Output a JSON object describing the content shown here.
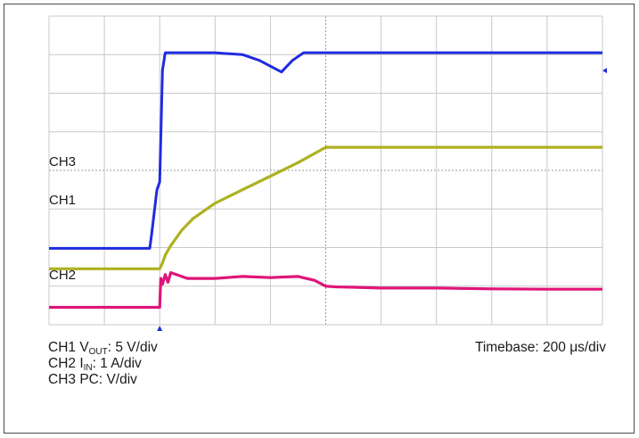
{
  "chart_data": {
    "type": "line",
    "title": "",
    "xlabel": "",
    "ylabel": "",
    "grid": true,
    "divisions": {
      "x": 10,
      "y": 8
    },
    "xlim": [
      0,
      10
    ],
    "ylim": [
      0,
      8
    ],
    "trigger_x": 2.0,
    "series": [
      {
        "name": "CH3",
        "color": "#1f2be0",
        "x": [
          0,
          1.82,
          1.85,
          1.9,
          1.95,
          2.0,
          2.05,
          2.1,
          2.5,
          3.0,
          3.5,
          3.8,
          4.0,
          4.2,
          4.4,
          4.6,
          5.0,
          6.0,
          7.0,
          8.0,
          9.0,
          10.0
        ],
        "y": [
          1.98,
          1.98,
          2.3,
          2.9,
          3.5,
          3.7,
          6.6,
          7.05,
          7.05,
          7.05,
          7.0,
          6.85,
          6.7,
          6.55,
          6.85,
          7.05,
          7.05,
          7.05,
          7.05,
          7.05,
          7.05,
          7.05
        ]
      },
      {
        "name": "CH1",
        "color": "#b0b020",
        "x": [
          0,
          2.0,
          2.05,
          2.1,
          2.2,
          2.4,
          2.6,
          3.0,
          3.5,
          4.0,
          4.5,
          5.0,
          5.2,
          6.0,
          7.0,
          8.0,
          9.0,
          10.0
        ],
        "y": [
          1.45,
          1.45,
          1.6,
          1.8,
          2.05,
          2.45,
          2.75,
          3.15,
          3.5,
          3.85,
          4.2,
          4.6,
          4.6,
          4.6,
          4.6,
          4.6,
          4.6,
          4.6
        ]
      },
      {
        "name": "CH2",
        "color": "#e0147a",
        "x": [
          0,
          2.0,
          2.02,
          2.05,
          2.1,
          2.15,
          2.2,
          2.3,
          2.5,
          3.0,
          3.5,
          4.0,
          4.5,
          4.8,
          5.0,
          5.2,
          5.5,
          6.0,
          7.0,
          8.0,
          9.0,
          10.0
        ],
        "y": [
          0.45,
          0.45,
          1.2,
          1.05,
          1.3,
          1.1,
          1.35,
          1.3,
          1.2,
          1.2,
          1.25,
          1.22,
          1.25,
          1.15,
          1.0,
          0.98,
          0.97,
          0.95,
          0.95,
          0.93,
          0.92,
          0.92
        ]
      }
    ],
    "channel_labels": [
      "CH3",
      "CH1",
      "CH2"
    ],
    "legend_lines": [
      {
        "prefix": "CH1 V",
        "sub": "OUT",
        "suffix": ": 5 V/div"
      },
      {
        "prefix": "CH2 I",
        "sub": "IN",
        "suffix": ": 1 A/div"
      },
      {
        "prefix": "CH3 PC",
        "sub": "",
        "suffix": ": V/div"
      }
    ],
    "timebase": "Timebase: 200 μs/div"
  },
  "colors": {
    "grid": "#c8c8c8",
    "grid_center": "#9a9a9a",
    "marker": "#1f2be0"
  }
}
